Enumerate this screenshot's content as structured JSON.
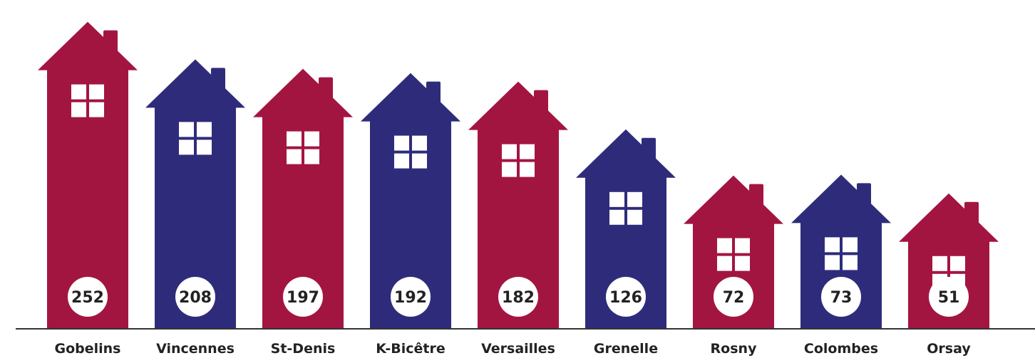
{
  "chart_data": {
    "type": "bar",
    "title": "",
    "xlabel": "",
    "ylabel": "",
    "categories": [
      "Gobelins",
      "Vincennes",
      "St-Denis",
      "K-Bicêtre",
      "Versailles",
      "Grenelle",
      "Rosny",
      "Colombes",
      "Orsay"
    ],
    "values": [
      252,
      208,
      197,
      192,
      182,
      126,
      72,
      73,
      51
    ],
    "value_labels": [
      "252",
      "208",
      "197",
      "192",
      "182",
      "126",
      "72",
      "73",
      "51"
    ],
    "colors": [
      "#a31541",
      "#2e2c7a",
      "#a31541",
      "#2e2c7a",
      "#a31541",
      "#2e2c7a",
      "#a31541",
      "#2e2c7a",
      "#a31541"
    ],
    "mark_shape": "house-icon",
    "grid": false,
    "legend": "none"
  }
}
